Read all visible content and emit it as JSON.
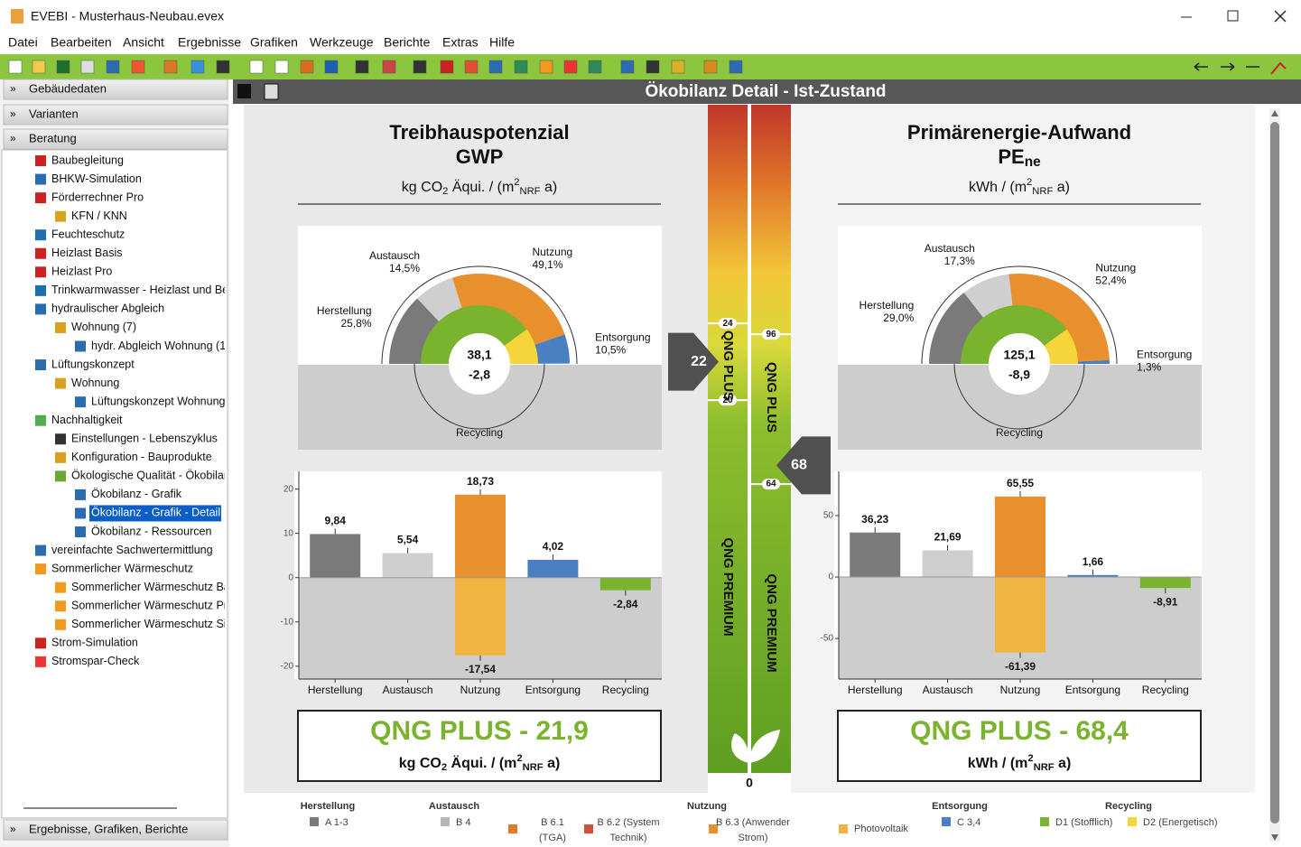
{
  "window": {
    "title": "EVEBI  - Musterhaus-Neubau.evex"
  },
  "menu": [
    "Datei",
    "Bearbeiten",
    "Ansicht",
    "Ergebnisse",
    "Grafiken",
    "Werkzeuge",
    "Berichte",
    "Extras",
    "Hilfe"
  ],
  "sidebar": {
    "sections": [
      "Gebäudedaten",
      "Varianten",
      "Beratung"
    ],
    "tree": [
      {
        "label": "Baubegleitung",
        "level": 0
      },
      {
        "label": "BHKW-Simulation",
        "level": 0
      },
      {
        "label": "Förderrechner Pro",
        "level": 0
      },
      {
        "label": "KFN / KNN",
        "level": 1
      },
      {
        "label": "Feuchteschutz",
        "level": 0
      },
      {
        "label": "Heizlast Basis",
        "level": 0
      },
      {
        "label": "Heizlast Pro",
        "level": 0
      },
      {
        "label": "Trinkwarmwasser - Heizlast und Be",
        "level": 0
      },
      {
        "label": "hydraulischer Abgleich",
        "level": 0
      },
      {
        "label": "Wohnung (7)",
        "level": 1
      },
      {
        "label": "hydr. Abgleich Wohnung (1",
        "level": 2
      },
      {
        "label": "Lüftungskonzept",
        "level": 0
      },
      {
        "label": "Wohnung",
        "level": 1
      },
      {
        "label": "Lüftungskonzept Wohnung",
        "level": 2
      },
      {
        "label": "Nachhaltigkeit",
        "level": 0
      },
      {
        "label": "Einstellungen - Lebenszyklus",
        "level": 1
      },
      {
        "label": "Konfiguration - Bauprodukte",
        "level": 1
      },
      {
        "label": "Ökologische Qualität - Ökobilan",
        "level": 1
      },
      {
        "label": "Ökobilanz - Grafik",
        "level": 2
      },
      {
        "label": "Ökobilanz - Grafik - Detail",
        "level": 2
      },
      {
        "label": "Ökobilanz - Ressourcen",
        "level": 2
      },
      {
        "label": "vereinfachte Sachwertermittlung",
        "level": 0
      },
      {
        "label": "Sommerlicher Wärmeschutz",
        "level": 0
      },
      {
        "label": "Sommerlicher Wärmeschutz Bas",
        "level": 1
      },
      {
        "label": "Sommerlicher Wärmeschutz Pro",
        "level": 1
      },
      {
        "label": "Sommerlicher Wärmeschutz Sim",
        "level": 1
      },
      {
        "label": "Strom-Simulation",
        "level": 0
      },
      {
        "label": "Stromspar-Check",
        "level": 0
      }
    ],
    "selected": 19,
    "bottom": "Ergebnisse, Grafiken, Berichte"
  },
  "panel": {
    "title": "Ökobilanz Detail - Ist-Zustand"
  },
  "gwp": {
    "title": [
      "Treibhauspotenzial",
      "GWP"
    ],
    "unit": [
      "kg CO",
      "2",
      " Äqui. / (m",
      "2",
      "NRF",
      " a)"
    ],
    "gauge": {
      "segments": [
        {
          "name": "Herstellung",
          "value": 25.8,
          "value_label": "25,8%",
          "color": "#7a7a7a"
        },
        {
          "name": "Austausch",
          "value": 14.5,
          "value_label": "14,5%",
          "color": "#cfcfcf"
        },
        {
          "name": "Nutzung",
          "value": 49.1,
          "value_label": "49,1%",
          "color": "#e8902e"
        },
        {
          "name": "Entsorgung",
          "value": 10.5,
          "value_label": "10,5%",
          "color": "#4a80c2"
        }
      ],
      "total": "38,1",
      "credit": "-2,8",
      "recycling": {
        "name": "Recycling",
        "values": [
          80,
          20
        ],
        "colors": [
          "#7ab32e",
          "#f5d53a"
        ]
      }
    },
    "bars": {
      "categories": [
        "Herstellung",
        "Austausch",
        "Nutzung",
        "Entsorgung",
        "Recycling"
      ],
      "colors": [
        "#7a7a7a",
        "#cfcfcf",
        "#e8902e",
        "#4a80c2",
        "#7ab32e"
      ],
      "neg_color": "#f2b440",
      "series": [
        {
          "values": [
            9.84,
            5.54,
            18.73,
            4.02,
            null
          ],
          "value_labels": [
            "9,84",
            "5,54",
            "18,73",
            "4,02",
            null
          ]
        },
        {
          "values": [
            null,
            null,
            -17.54,
            null,
            -2.84
          ],
          "value_labels": [
            null,
            null,
            "-17,54",
            null,
            "-2,84"
          ]
        }
      ],
      "ylim": [
        -22.9,
        24
      ],
      "yticks": [
        20,
        10,
        0,
        -10,
        -20
      ]
    },
    "result": "QNG PLUS - 21,9"
  },
  "pe": {
    "title": [
      "Primärenergie-Aufwand",
      "PE",
      "ne"
    ],
    "unit": [
      "kWh / (m",
      "2",
      "NRF",
      " a)"
    ],
    "gauge": {
      "segments": [
        {
          "name": "Herstellung",
          "value": 29.0,
          "value_label": "29,0%",
          "color": "#7a7a7a"
        },
        {
          "name": "Austausch",
          "value": 17.3,
          "value_label": "17,3%",
          "color": "#cfcfcf"
        },
        {
          "name": "Nutzung",
          "value": 52.4,
          "value_label": "52,4%",
          "color": "#e8902e"
        },
        {
          "name": "Entsorgung",
          "value": 1.3,
          "value_label": "1,3%",
          "color": "#4a80c2"
        }
      ],
      "total": "125,1",
      "credit": "-8,9",
      "recycling": {
        "name": "Recycling",
        "values": [
          80,
          20
        ],
        "colors": [
          "#7ab32e",
          "#f5d53a"
        ]
      }
    },
    "bars": {
      "categories": [
        "Herstellung",
        "Austausch",
        "Nutzung",
        "Entsorgung",
        "Recycling"
      ],
      "colors": [
        "#7a7a7a",
        "#cfcfcf",
        "#e8902e",
        "#4a80c2",
        "#7ab32e"
      ],
      "neg_color": "#f2b440",
      "series": [
        {
          "values": [
            36.23,
            21.69,
            65.55,
            1.66,
            null
          ],
          "value_labels": [
            "36,23",
            "21,69",
            "65,55",
            "1,66",
            null
          ]
        },
        {
          "values": [
            null,
            null,
            -61.39,
            null,
            -8.91
          ],
          "value_labels": [
            null,
            null,
            "-61,39",
            null,
            "-8,91"
          ]
        }
      ],
      "ylim": [
        -83,
        86
      ],
      "yticks": [
        50,
        0,
        -50
      ]
    },
    "result": "QNG PLUS - 68,4"
  },
  "scale": {
    "left": {
      "ylim": [
        0,
        35.4
      ],
      "yticks": [
        24,
        20
      ],
      "marker": 22,
      "labels": [
        "QNG PLUS",
        "QNG PREMIUM"
      ]
    },
    "right": {
      "ylim": [
        0,
        145
      ],
      "yticks": [
        96,
        64
      ],
      "marker": 68,
      "labels": [
        "QNG PLUS",
        "QNG PREMIUM"
      ]
    },
    "bottom": 0
  },
  "legend": [
    {
      "title": "Herstellung",
      "items": [
        {
          "lines": [
            "A 1-3"
          ],
          "color": "#7a7a7a"
        }
      ]
    },
    {
      "title": "Austausch",
      "items": [
        {
          "lines": [
            "B 4"
          ],
          "color": "#b5b5b5"
        }
      ]
    },
    {
      "title": "Nutzung",
      "items": [
        {
          "lines": [
            "B 6.1",
            "(TGA)"
          ],
          "color": "#e07a2a"
        },
        {
          "lines": [
            "B 6.2 (System",
            "Technik)"
          ],
          "color": "#d0523a"
        },
        {
          "lines": [
            "B 6.3 (Anwender",
            "Strom)"
          ],
          "color": "#e8902e"
        },
        {
          "lines": [
            "Photovoltaik"
          ],
          "color": "#f2b440"
        }
      ]
    },
    {
      "title": "Entsorgung",
      "items": [
        {
          "lines": [
            "C 3,4"
          ],
          "color": "#4a80c2"
        }
      ]
    },
    {
      "title": "Recycling",
      "items": [
        {
          "lines": [
            "D1 (Stofflich)"
          ],
          "color": "#7ab32e"
        },
        {
          "lines": [
            "D2 (Energetisch)"
          ],
          "color": "#f5d53a"
        }
      ]
    }
  ]
}
